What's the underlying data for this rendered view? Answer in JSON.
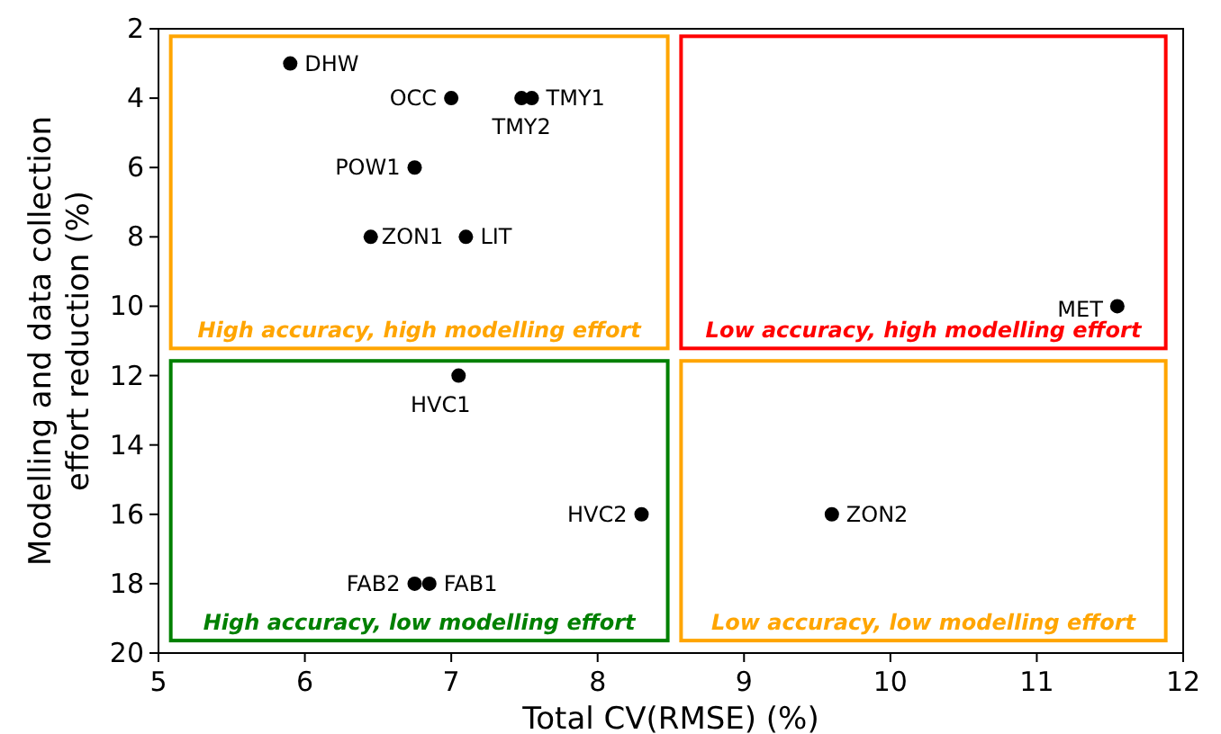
{
  "chart_data": {
    "type": "scatter",
    "xlabel": "Total CV(RMSE) (%)",
    "ylabel": "Modelling and data collection\neffort reduction (%)",
    "xlim": [
      5,
      12
    ],
    "xticks": [
      5,
      6,
      7,
      8,
      9,
      10,
      11,
      12
    ],
    "ylim": [
      20,
      2
    ],
    "yticks": [
      2,
      4,
      6,
      8,
      10,
      12,
      14,
      16,
      18,
      20
    ],
    "marker": "circle",
    "series": [
      {
        "name": "DHW",
        "color": "#000000",
        "x": [
          5.9
        ],
        "values": [
          3
        ]
      },
      {
        "name": "OCC",
        "color": "#000000",
        "x": [
          7.0
        ],
        "values": [
          4
        ]
      },
      {
        "name": "TMY2",
        "color": "#000000",
        "x": [
          7.48
        ],
        "values": [
          4
        ]
      },
      {
        "name": "TMY1",
        "color": "#000000",
        "x": [
          7.55
        ],
        "values": [
          4
        ]
      },
      {
        "name": "POW1",
        "color": "#000000",
        "x": [
          6.75
        ],
        "values": [
          6
        ]
      },
      {
        "name": "ZON1",
        "color": "#000000",
        "x": [
          6.45
        ],
        "values": [
          8
        ]
      },
      {
        "name": "LIT",
        "color": "#000000",
        "x": [
          7.1
        ],
        "values": [
          8
        ]
      },
      {
        "name": "MET",
        "color": "#000000",
        "x": [
          11.55
        ],
        "values": [
          10
        ]
      },
      {
        "name": "HVC1",
        "color": "#000000",
        "x": [
          7.05
        ],
        "values": [
          12
        ]
      },
      {
        "name": "HVC2",
        "color": "#000000",
        "x": [
          8.3
        ],
        "values": [
          16
        ]
      },
      {
        "name": "ZON2",
        "color": "#000000",
        "x": [
          9.6
        ],
        "values": [
          16
        ]
      },
      {
        "name": "FAB2",
        "color": "#000000",
        "x": [
          6.75
        ],
        "values": [
          18
        ]
      },
      {
        "name": "FAB1",
        "color": "#000000",
        "x": [
          6.85
        ],
        "values": [
          18
        ]
      }
    ],
    "annotations": [
      "High accuracy, high modelling effort",
      "Low accuracy, high modelling effort",
      "High accuracy, low modelling effort",
      "Low accuracy, low modelling effort"
    ]
  }
}
